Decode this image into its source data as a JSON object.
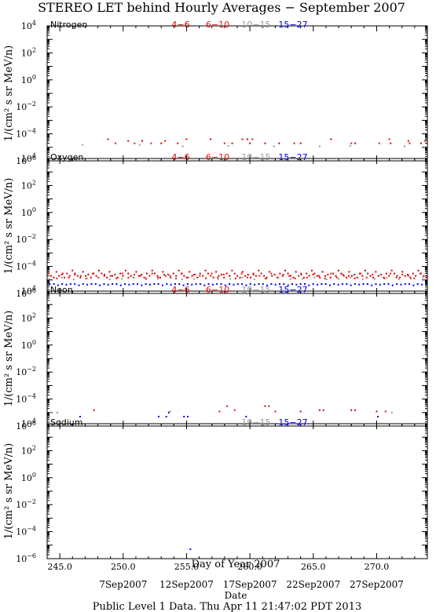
{
  "title": "STEREO LET behind Hourly Averages − September 2007",
  "footer": "Public Level 1 Data. Thu Apr 11 21:47:02 PDT 2013",
  "xlabel": "Day of Year 2007",
  "date_axis_title": "Date",
  "date_labels": [
    {
      "label": "7Sep2007",
      "day": 250
    },
    {
      "label": "12Sep2007",
      "day": 255
    },
    {
      "label": "17Sep2007",
      "day": 260
    },
    {
      "label": "22Sep2007",
      "day": 265
    },
    {
      "label": "27Sep2007",
      "day": 270
    }
  ],
  "colors": {
    "4-6": "#cc0000",
    "6-10": "#ee1111",
    "10-15": "#999999",
    "15-27": "#0000ee"
  },
  "chart_data": [
    {
      "type": "scatter",
      "panel": "Nitrogen",
      "ylabel": "1/(cm² s sr MeV/n)",
      "yscale": "log",
      "ylim": [
        1e-06,
        10000.0
      ],
      "xlim": [
        244,
        274
      ],
      "xticks": [
        "245.0",
        "250.0",
        "255.0",
        "260.0",
        "265.0",
        "270.0"
      ],
      "xtick_values": [
        245,
        250,
        255,
        260,
        265,
        270
      ],
      "yticks": [
        "10^4",
        "10^2",
        "10^0",
        "10^-2",
        "10^-4",
        "10^-6"
      ],
      "legend": [
        "4−6",
        "6−10",
        "10−15",
        "15−27"
      ],
      "legend_keys": [
        "4-6",
        "6-10",
        "10-15",
        "15-27"
      ],
      "series": [
        {
          "name": "4−6",
          "key": "4-6",
          "x": [
            248.8,
            250.4,
            251.5,
            253.0,
            255.0,
            256.9,
            258.6,
            259.8,
            260.0,
            261.2,
            262.3,
            264.0,
            266.4,
            268.3,
            271.1,
            272.5,
            273.5
          ],
          "y": [
            4e-05,
            3e-05,
            3e-05,
            2e-05,
            4e-05,
            4e-05,
            2e-05,
            4e-05,
            2e-05,
            2e-05,
            2e-05,
            2e-05,
            4e-05,
            2e-05,
            2e-05,
            3e-05,
            2e-05
          ]
        },
        {
          "name": "6−10",
          "key": "6-10",
          "x": [
            249.4,
            250.9,
            252.2,
            253.3,
            254.3,
            258.0,
            259.4,
            260.2,
            263.5,
            268.0,
            270.2,
            271.0,
            272.6,
            273.8
          ],
          "y": [
            2e-05,
            2e-05,
            2e-05,
            3e-05,
            2e-05,
            2e-05,
            4e-05,
            4e-05,
            2e-05,
            2e-05,
            2e-05,
            4e-05,
            2e-05,
            3e-05
          ]
        },
        {
          "name": "10−15",
          "key": "10-15",
          "x": [
            246.8,
            251.3,
            254.7,
            258.3,
            261.9,
            265.5,
            267.9,
            272.2
          ],
          "y": [
            1.5e-05,
            1.5e-05,
            1.2e-05,
            1.3e-05,
            1.2e-05,
            1.2e-05,
            1.3e-05,
            1.2e-05
          ]
        },
        {
          "name": "15−27",
          "key": "15-27",
          "x": [],
          "y": []
        }
      ]
    },
    {
      "type": "scatter",
      "panel": "Oxygen",
      "ylabel": "1/(cm² s sr MeV/n)",
      "yscale": "log",
      "ylim": [
        1e-06,
        10000.0
      ],
      "xlim": [
        244,
        274
      ],
      "xticks": [
        "245.0",
        "250.0",
        "255.0",
        "260.0",
        "265.0",
        "270.0"
      ],
      "xtick_values": [
        245,
        250,
        255,
        260,
        265,
        270
      ],
      "yticks": [
        "10^4",
        "10^2",
        "10^0",
        "10^-2",
        "10^-4",
        "10^-6"
      ],
      "legend": [
        "4−6",
        "6−10",
        "10−15",
        "15−27"
      ],
      "legend_keys": [
        "4-6",
        "6-10",
        "10-15",
        "15-27"
      ],
      "series": [
        {
          "name": "4−6",
          "key": "4-6",
          "dense": true,
          "xstart": 244.1,
          "xstep": 0.21,
          "pattern": [
            3e-05,
            2e-05,
            1.5e-05,
            4e-05,
            2e-05,
            2.5e-05,
            1.5e-05,
            3e-05,
            2e-05,
            5e-05
          ]
        },
        {
          "name": "6−10",
          "key": "6-10",
          "dense": true,
          "xstart": 244.3,
          "xstep": 0.47,
          "pattern": [
            2e-05,
            1.3e-05,
            3e-05,
            1.5e-05,
            2.5e-05
          ]
        },
        {
          "name": "10−15",
          "key": "10-15",
          "dense": true,
          "xstart": 244.2,
          "xstep": 0.95,
          "pattern": [
            1.2e-05,
            1.5e-05,
            1.1e-05
          ]
        },
        {
          "name": "15−27",
          "key": "15-27",
          "dense": true,
          "xstart": 244.2,
          "xstep": 0.33,
          "pattern": [
            5e-06,
            5e-06,
            4e-06,
            5e-06,
            4.5e-06
          ]
        }
      ]
    },
    {
      "type": "scatter",
      "panel": "Neon",
      "ylabel": "1/(cm² s sr MeV/n)",
      "yscale": "log",
      "ylim": [
        1e-06,
        10000.0
      ],
      "xlim": [
        244,
        274
      ],
      "xticks": [
        "245.0",
        "250.0",
        "255.0",
        "260.0",
        "265.0",
        "270.0"
      ],
      "xtick_values": [
        245,
        250,
        255,
        260,
        265,
        270
      ],
      "yticks": [
        "10^4",
        "10^2",
        "10^0",
        "10^-2",
        "10^-4",
        "10^-6"
      ],
      "legend": [
        "4−6",
        "6−10",
        "10−15",
        "15−27"
      ],
      "legend_keys": [
        "4-6",
        "6-10",
        "10-15",
        "15-27"
      ],
      "series": [
        {
          "name": "4−6",
          "key": "4-6",
          "x": [
            247.7,
            258.2,
            261.2,
            261.5,
            264.0,
            265.5,
            265.8,
            268.0,
            268.3,
            270.0
          ],
          "y": [
            1.5e-05,
            3e-05,
            3e-05,
            3e-05,
            1.2e-05,
            1.5e-05,
            1.5e-05,
            1.5e-05,
            1.5e-05,
            1.2e-05
          ]
        },
        {
          "name": "6−10",
          "key": "6-10",
          "x": [
            257.6,
            258.8,
            262.0,
            270.7
          ],
          "y": [
            1.2e-05,
            1.5e-05,
            1.2e-05,
            1.2e-05
          ]
        },
        {
          "name": "10−15",
          "key": "10-15",
          "x": [
            244.3,
            244.8,
            253.7,
            271.2
          ],
          "y": [
            1e-05,
            1e-05,
            1.2e-05,
            1e-05
          ]
        },
        {
          "name": "15−27",
          "key": "15-27",
          "x": [
            246.6,
            252.8,
            253.4,
            253.6,
            254.8,
            255.1,
            259.7,
            270.1
          ],
          "y": [
            5e-06,
            5e-06,
            5e-06,
            1e-05,
            5e-06,
            5e-06,
            5e-06,
            5e-06
          ]
        }
      ]
    },
    {
      "type": "scatter",
      "panel": "Sodium",
      "ylabel": "1/(cm² s sr MeV/n)",
      "yscale": "log",
      "ylim": [
        1e-06,
        10000.0
      ],
      "xlim": [
        244,
        274
      ],
      "xticks": [
        "245.0",
        "250.0",
        "255.0",
        "260.0",
        "265.0",
        "270.0"
      ],
      "xtick_values": [
        245,
        250,
        255,
        260,
        265,
        270
      ],
      "yticks": [
        "10^4",
        "10^2",
        "10^0",
        "10^-2",
        "10^-4",
        "10^-6"
      ],
      "legend": [
        "10−15",
        "15−27"
      ],
      "legend_keys": [
        "10-15",
        "15-27"
      ],
      "series": [
        {
          "name": "10−15",
          "key": "10-15",
          "x": [],
          "y": []
        },
        {
          "name": "15−27",
          "key": "15-27",
          "x": [
            255.3
          ],
          "y": [
            5e-06
          ]
        }
      ]
    }
  ]
}
